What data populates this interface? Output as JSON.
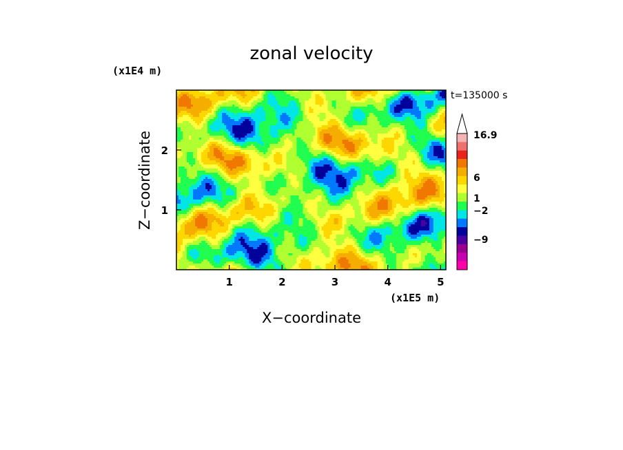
{
  "chart_data": {
    "type": "heatmap",
    "title": "zonal velocity",
    "xlabel": "X−coordinate",
    "ylabel": "Z−coordinate",
    "x_unit": "(x1E5 m)",
    "y_unit": "(x1E4 m)",
    "time_label": "t=135000 s",
    "x_ticks": [
      "1",
      "2",
      "3",
      "4",
      "5"
    ],
    "y_ticks": [
      "1",
      "2"
    ],
    "xlim": [
      0,
      5.1
    ],
    "ylim": [
      0,
      3
    ],
    "colorbar": {
      "levels": [
        "16.9",
        "6",
        "1",
        "−2",
        "−9"
      ],
      "colors": [
        "#f5b4b4",
        "#f07070",
        "#e8231c",
        "#f07800",
        "#f5ae00",
        "#ffd700",
        "#ffff40",
        "#b0ff30",
        "#20ff50",
        "#00e6e6",
        "#0078ff",
        "#00009a",
        "#4a00a0",
        "#9a0090",
        "#c800b0",
        "#ff00a8"
      ]
    }
  }
}
